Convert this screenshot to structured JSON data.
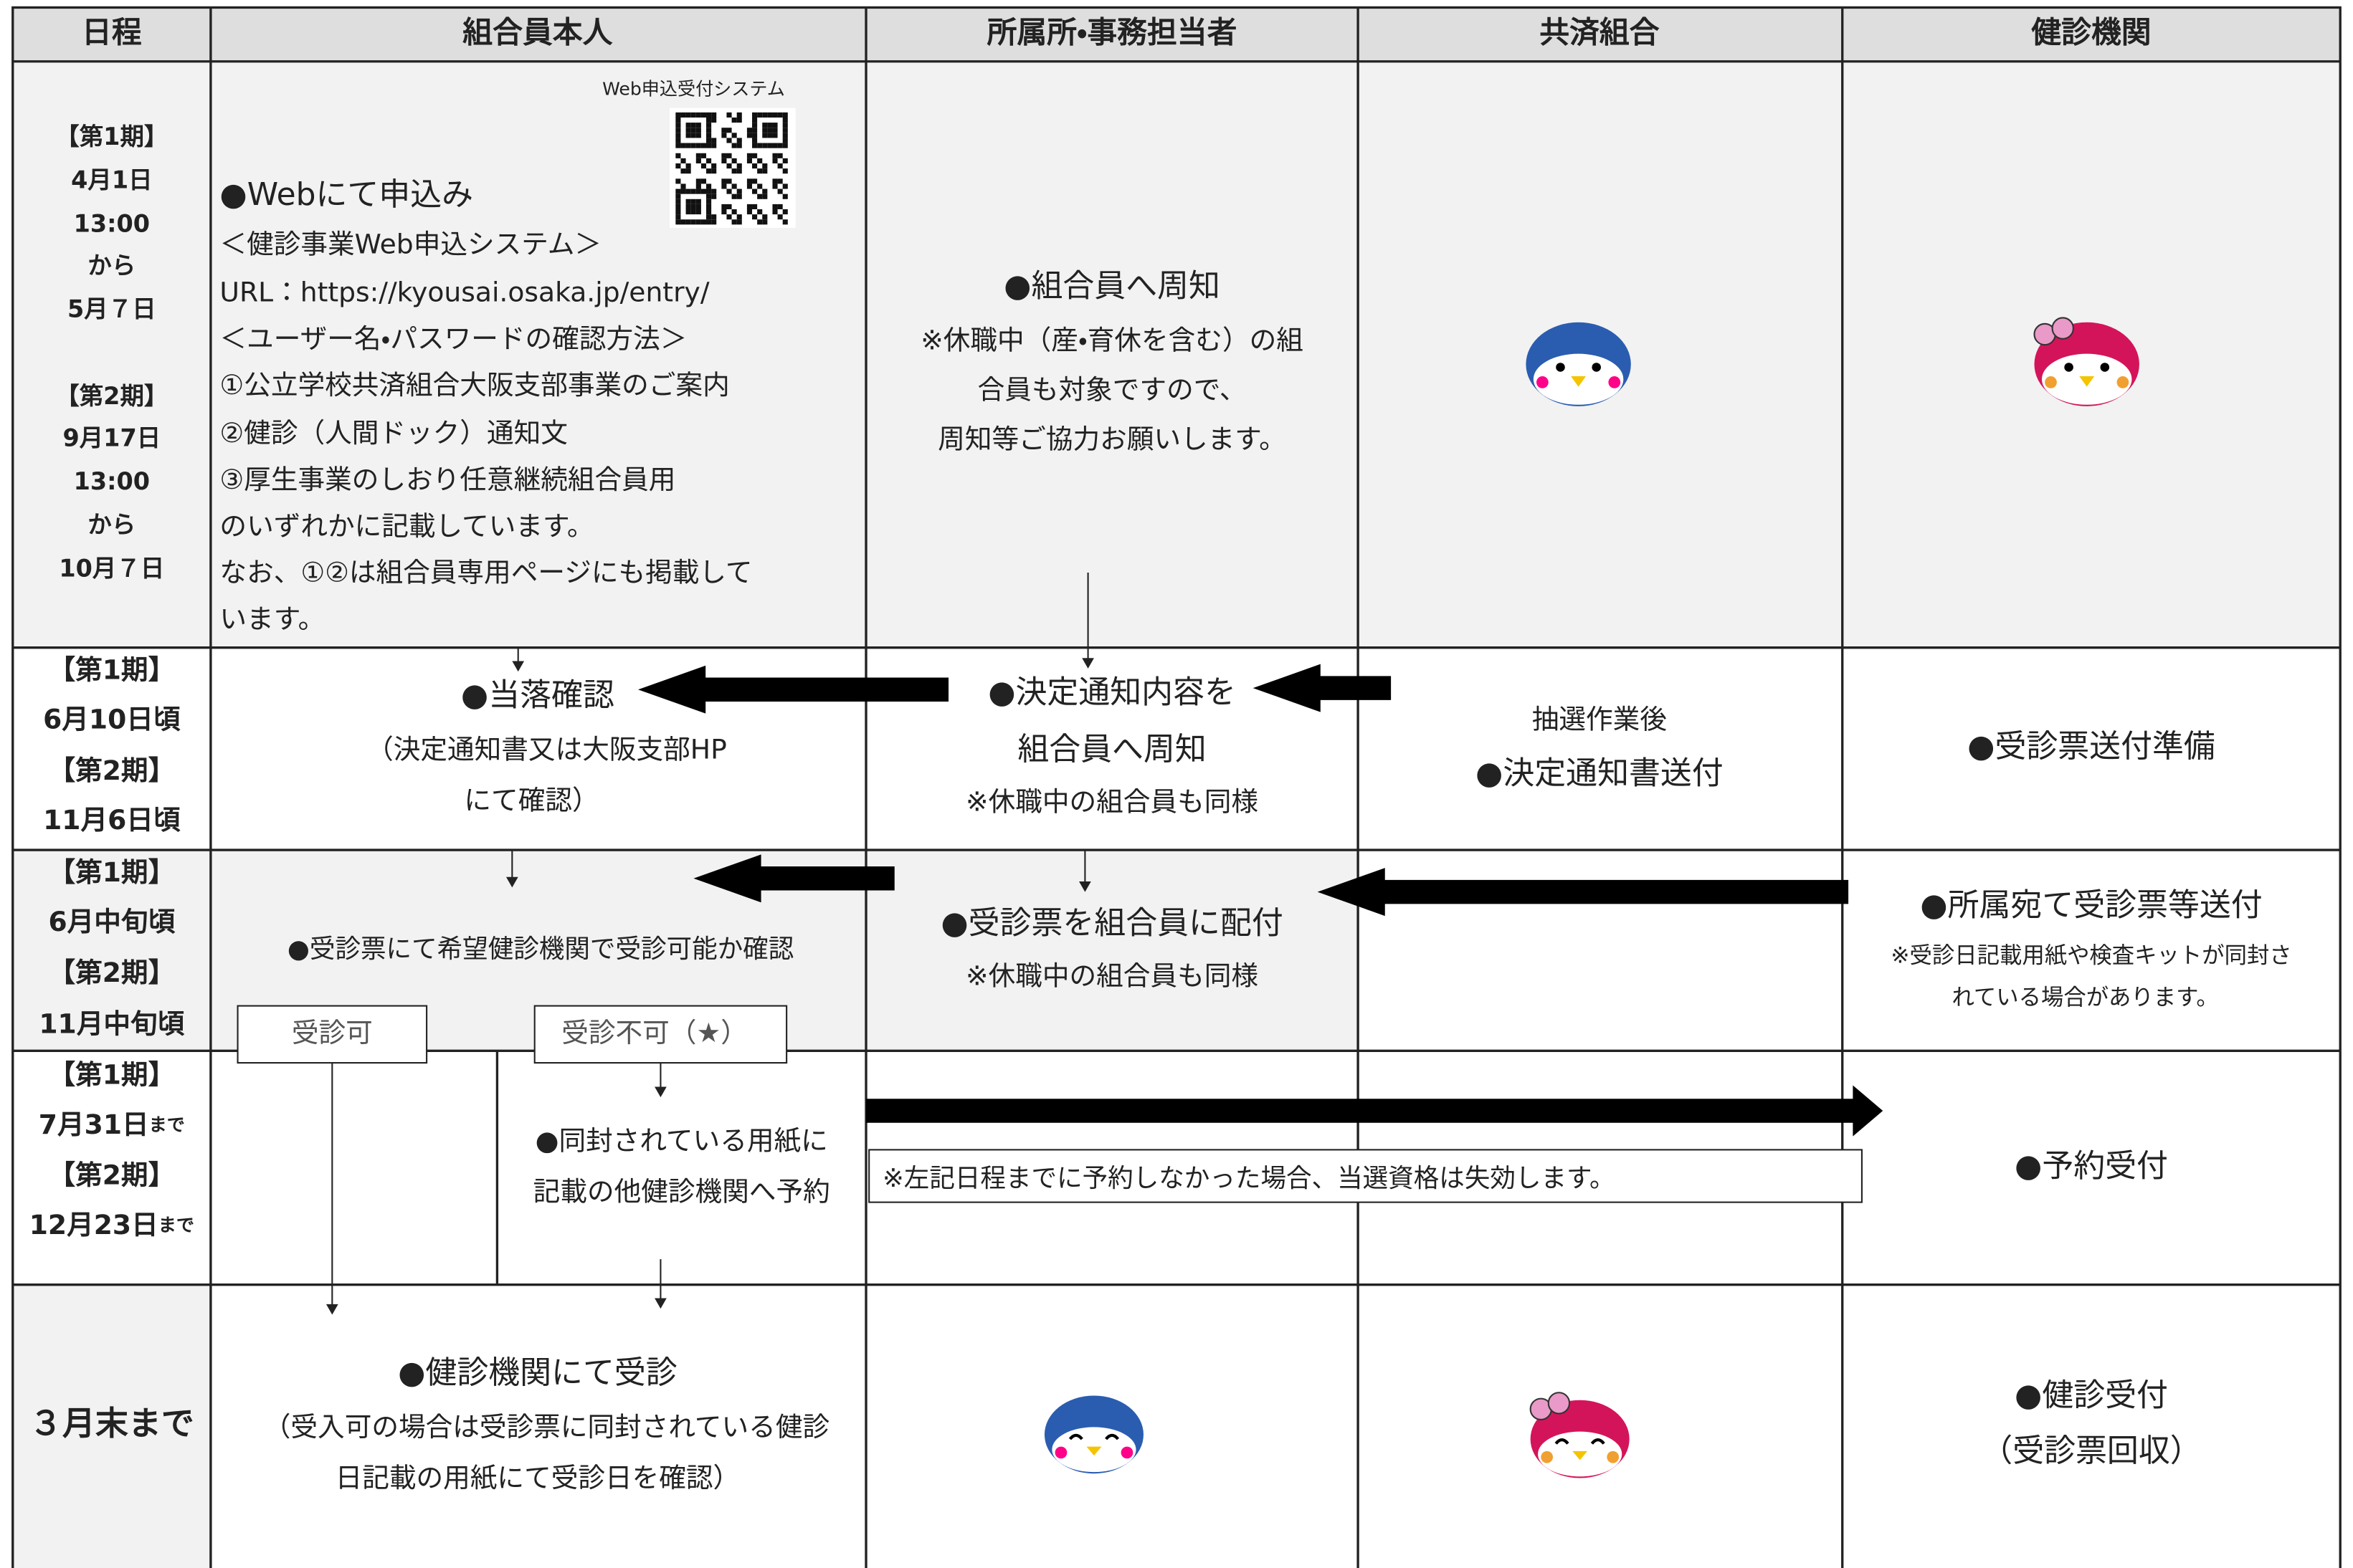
{
  "header": [
    "日程",
    "組合員本人",
    "所属所・事務担当者",
    "共済組合",
    "健診機関"
  ],
  "rows": [
    {
      "schedule": [
        "【第1期】",
        "4月1日",
        "13:00",
        "から",
        "5月７日",
        "【第2期】",
        "9月17日",
        "13:00",
        "から",
        "10月７日"
      ],
      "member": {
        "qr_caption": "Web申込受付システム",
        "title": "●Webにて申込み",
        "lines": [
          "＜健診事業Web申込システム＞",
          "URL：https://kyousai.osaka.jp/entry/",
          "＜ユーザー名・パスワードの確認方法＞",
          "①公立学校共済組合大阪支部事業のご案内",
          "②健診（人間ドック）通知文",
          "③厚生事業のしおり任意継続組合員用",
          "のいずれかに記載しています。",
          "なお、①②は組合員専用ページにも掲載して",
          "います。"
        ]
      },
      "office": {
        "title": "●組合員へ周知",
        "lines": [
          "※休職中（産・育休を含む）の組",
          "合員も対象ですので、",
          "周知等ご協力お願いします。"
        ]
      }
    },
    {
      "schedule": [
        "【第1期】",
        "6月10日頃",
        "【第2期】",
        "11月6日頃"
      ],
      "member": {
        "title": "●当落確認",
        "lines": [
          "（決定通知書又は大阪支部HP",
          "にて確認）"
        ]
      },
      "office": {
        "title": "●決定通知内容を",
        "lines": [
          "組合員へ周知",
          "※休職中の組合員も同様"
        ]
      },
      "union": {
        "lines": [
          "抽選作業後",
          "●決定通知書送付"
        ]
      },
      "clinic": {
        "title": "●受診票送付準備"
      }
    },
    {
      "schedule": [
        "【第1期】",
        "6月中旬頃",
        "【第2期】",
        "11月中旬頃"
      ],
      "member": {
        "title": "●受診票にて希望健診機関で受診可能か確認",
        "options": [
          "受診可",
          "受診不可（★）"
        ]
      },
      "office": {
        "title": "●受診票を組合員に配付",
        "lines": [
          "※休職中の組合員も同様"
        ]
      },
      "clinic": {
        "title": "●所属宛て受診票等送付",
        "lines": [
          "※受診日記載用紙や検査キットが同封さ",
          "れている場合があります。"
        ]
      }
    },
    {
      "schedule": [
        {
          "text": "【第1期】"
        },
        {
          "text": "7月31日",
          "suffix": "まで"
        },
        {
          "text": "【第2期】"
        },
        {
          "text": "12月23日",
          "suffix": "まで"
        }
      ],
      "member": {
        "lines": [
          "●同封されている用紙に",
          "記載の他健診機関へ予約"
        ]
      },
      "note": "※左記日程までに予約しなかった場合、当選資格は失効します。",
      "clinic": {
        "title": "●予約受付"
      }
    },
    {
      "schedule": [
        "３月末まで"
      ],
      "member": {
        "title": "●健診機関にて受診",
        "lines": [
          "（受入可の場合は受診票に同封されている健診",
          "日記載の用紙にて受診日を確認）"
        ]
      },
      "clinic": {
        "title": "●健診受付",
        "lines": [
          "（受診票回収）"
        ]
      }
    }
  ]
}
